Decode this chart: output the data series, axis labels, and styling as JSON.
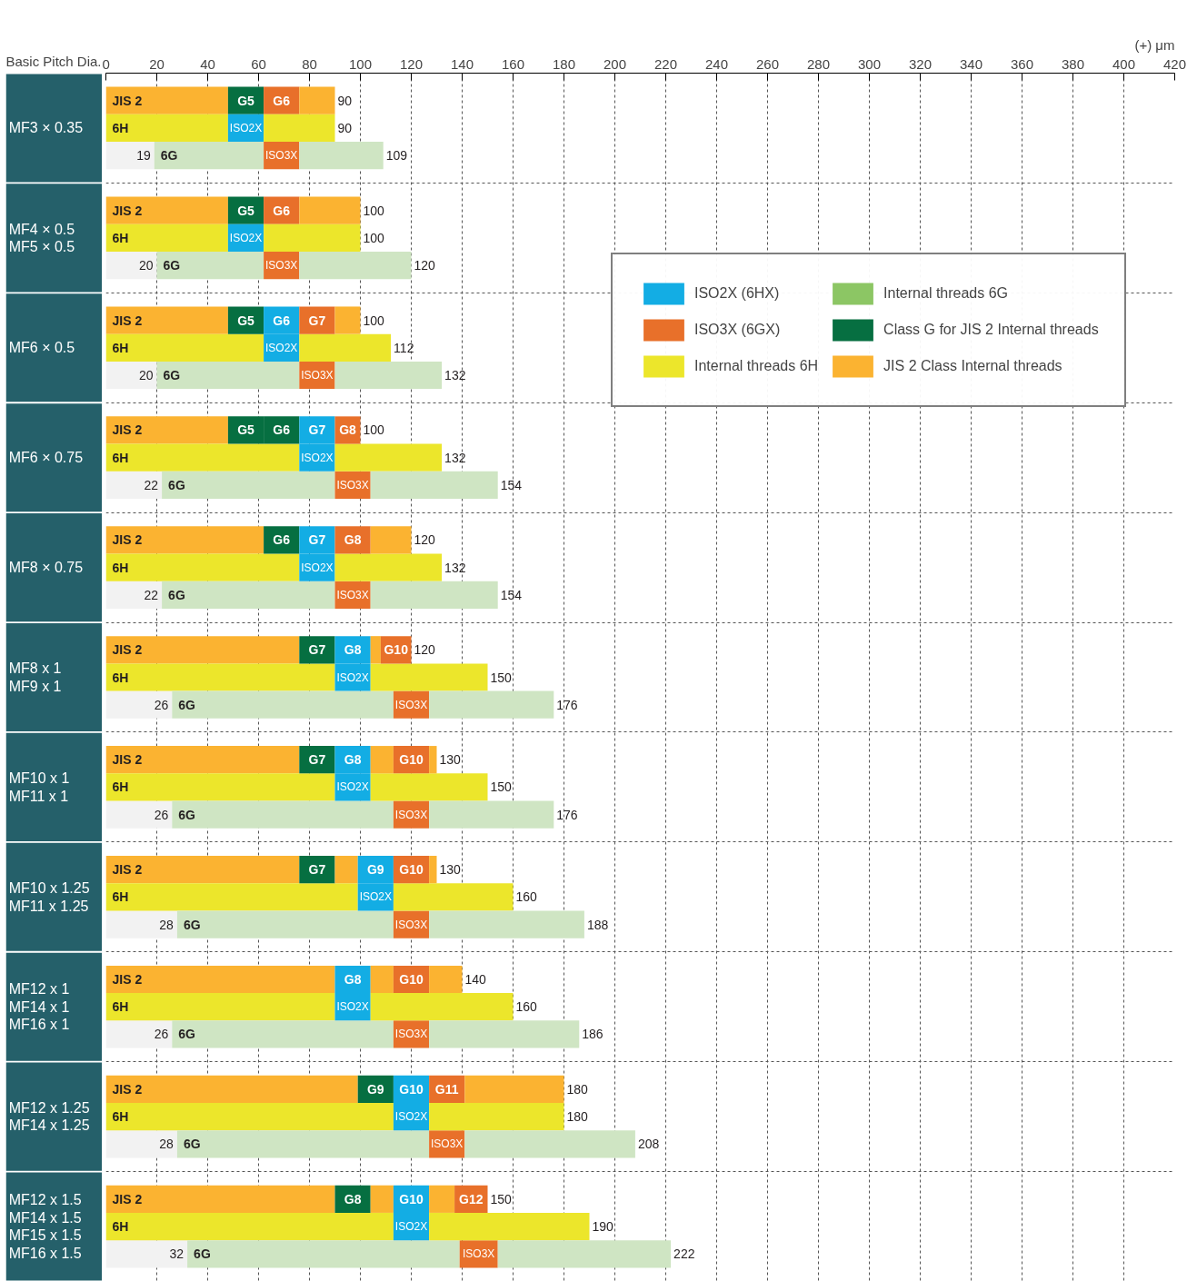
{
  "chart_data": {
    "type": "bar",
    "orientation": "horizontal",
    "stacked": true,
    "xlabel": "(+) μm",
    "ylabel": "Basic Pitch Dia.",
    "categories": [
      "JIS 2",
      "6H",
      "6G",
      "JIS 2",
      "6H",
      "6G",
      "JIS 2",
      "6H",
      "6G",
      "JIS 2",
      "6H",
      "6G",
      "JIS 2",
      "6H",
      "6G",
      "JIS 2",
      "6H",
      "6G",
      "JIS 2",
      "6H",
      "6G",
      "JIS 2",
      "6H",
      "6G",
      "JIS 2",
      "6H",
      "6G",
      "JIS 2",
      "6H",
      "6G",
      "JIS 2",
      "6H",
      "6G"
    ],
    "annotations": [
      "MF3 × 0.35",
      "MF4 × 0.5\nMF5 × 0.5",
      "MF6 × 0.5",
      "MF6 × 0.75",
      "MF8 × 0.75",
      "MF8 x 1\nMF9 x 1",
      "MF10 x 1\nMF11 x 1",
      "MF10 x 1.25\nMF11 x 1.25",
      "MF12 x 1\nMF14 x 1\nMF16 x 1",
      "MF12 x 1.25\nMF14 x 1.25",
      "MF12 x 1.5\nMF14 x 1.5\nMF15 x 1.5\nMF16 x 1.5"
    ],
    "totals": [
      "90",
      "90",
      "109",
      "100",
      "100",
      "120",
      "100",
      "112",
      "132",
      "100",
      "132",
      "154",
      "120",
      "132",
      "154",
      "120",
      "150",
      "176",
      "130",
      "150",
      "176",
      "130",
      "160",
      "188",
      "140",
      "160",
      "186",
      "180",
      "180",
      "208",
      "150",
      "190",
      "222"
    ],
    "xlim": [
      0,
      420
    ],
    "xticks": [
      0,
      20,
      40,
      60,
      80,
      100,
      120,
      140,
      160,
      180,
      200,
      220,
      240,
      260,
      280,
      300,
      320,
      340,
      360,
      380,
      400,
      420
    ],
    "grid": true,
    "legend": "top right",
    "series": [
      {
        "values": [
          null,
          null,
          19,
          null,
          null,
          20,
          null,
          null,
          20,
          null,
          null,
          22,
          null,
          null,
          22,
          null,
          null,
          26,
          null,
          null,
          26,
          null,
          null,
          28,
          null,
          null,
          26,
          null,
          null,
          28,
          null,
          null,
          32
        ],
        "colors": [
          null,
          null,
          "#f2f2f2",
          null,
          null,
          "#f2f2f2",
          null,
          null,
          "#f2f2f2",
          null,
          null,
          "#f2f2f2",
          null,
          null,
          "#f2f2f2",
          null,
          null,
          "#f2f2f2",
          null,
          null,
          "#f2f2f2",
          null,
          null,
          "#f2f2f2",
          null,
          null,
          "#f2f2f2",
          null,
          null,
          "#f2f2f2",
          null,
          null,
          "#f2f2f2"
        ],
        "value_labels": [
          null,
          null,
          "19",
          null,
          null,
          "20",
          null,
          null,
          "20",
          null,
          null,
          "22",
          null,
          null,
          "22",
          null,
          null,
          "26",
          null,
          null,
          "26",
          null,
          null,
          "28",
          null,
          null,
          "26",
          null,
          null,
          "28",
          null,
          null,
          "32"
        ]
      },
      {
        "values": [
          48,
          48,
          43,
          48,
          48,
          42,
          48,
          62,
          56,
          48,
          76,
          68,
          62,
          76,
          68,
          76,
          90,
          87,
          76,
          90,
          87,
          76,
          99,
          85,
          90,
          90,
          87,
          99,
          113,
          99,
          90,
          113,
          107
        ],
        "colors": [
          "#fbb331",
          "#ece62b",
          "#cfe5c3",
          "#fbb331",
          "#ece62b",
          "#cfe5c3",
          "#fbb331",
          "#ece62b",
          "#cfe5c3",
          "#fbb331",
          "#ece62b",
          "#cfe5c3",
          "#fbb331",
          "#ece62b",
          "#cfe5c3",
          "#fbb331",
          "#ece62b",
          "#cfe5c3",
          "#fbb331",
          "#ece62b",
          "#cfe5c3",
          "#fbb331",
          "#ece62b",
          "#cfe5c3",
          "#fbb331",
          "#ece62b",
          "#cfe5c3",
          "#fbb331",
          "#ece62b",
          "#cfe5c3",
          "#fbb331",
          "#ece62b",
          "#cfe5c3"
        ]
      },
      {
        "values": [
          14,
          14,
          14,
          14,
          14,
          14,
          14,
          14,
          14,
          14,
          14,
          14,
          14,
          14,
          14,
          14,
          14,
          14,
          14,
          14,
          14,
          14,
          14,
          14,
          14,
          14,
          14,
          14,
          14,
          14,
          14,
          14,
          15
        ],
        "colors": [
          "#066f41",
          "#13ade4",
          "#e8702a",
          "#066f41",
          "#13ade4",
          "#e8702a",
          "#066f41",
          "#13ade4",
          "#e8702a",
          "#066f41",
          "#13ade4",
          "#e8702a",
          "#066f41",
          "#13ade4",
          "#e8702a",
          "#066f41",
          "#13ade4",
          "#e8702a",
          "#066f41",
          "#13ade4",
          "#e8702a",
          "#066f41",
          "#13ade4",
          "#e8702a",
          "#13ade4",
          "#13ade4",
          "#e8702a",
          "#066f41",
          "#13ade4",
          "#e8702a",
          "#066f41",
          "#13ade4",
          "#e8702a"
        ],
        "value_labels": [
          "G5",
          "ISO2X",
          "ISO3X",
          "G5",
          "ISO2X",
          "ISO3X",
          "G5",
          "ISO2X",
          "ISO3X",
          "G5",
          "ISO2X",
          "ISO3X",
          "G6",
          "ISO2X",
          "ISO3X",
          "G7",
          "ISO2X",
          "ISO3X",
          "G7",
          "ISO2X",
          "ISO3X",
          "G7",
          "ISO2X",
          "ISO3X",
          "G8",
          "ISO2X",
          "ISO3X",
          "G9",
          "ISO2X",
          "ISO3X",
          "G8",
          "ISO2X",
          "ISO3X"
        ]
      },
      {
        "values": [
          14,
          28,
          33,
          14,
          38,
          44,
          14,
          36,
          42,
          14,
          42,
          50,
          14,
          42,
          50,
          14,
          46,
          49,
          14,
          46,
          49,
          9,
          47,
          61,
          9,
          56,
          59,
          14,
          53,
          67,
          9,
          63,
          68
        ],
        "colors": [
          "#e8702a",
          "#ece62b",
          "#cfe5c3",
          "#e8702a",
          "#ece62b",
          "#cfe5c3",
          "#13ade4",
          "#ece62b",
          "#cfe5c3",
          "#066f41",
          "#ece62b",
          "#cfe5c3",
          "#13ade4",
          "#ece62b",
          "#cfe5c3",
          "#13ade4",
          "#ece62b",
          "#cfe5c3",
          "#13ade4",
          "#ece62b",
          "#cfe5c3",
          "#fbb331",
          "#ece62b",
          "#cfe5c3",
          "#fbb331",
          "#ece62b",
          "#cfe5c3",
          "#13ade4",
          "#ece62b",
          "#cfe5c3",
          "#fbb331",
          "#ece62b",
          "#cfe5c3"
        ],
        "value_labels": [
          "G6",
          null,
          null,
          "G6",
          null,
          null,
          "G6",
          null,
          null,
          "G6",
          null,
          null,
          "G7",
          null,
          null,
          "G8",
          null,
          null,
          "G8",
          null,
          null,
          null,
          null,
          null,
          null,
          null,
          null,
          "G10",
          null,
          null,
          null,
          null,
          null
        ]
      },
      {
        "values": [
          14,
          null,
          null,
          24,
          null,
          null,
          14,
          null,
          null,
          14,
          null,
          null,
          14,
          null,
          null,
          4,
          null,
          null,
          9,
          null,
          null,
          14,
          null,
          null,
          14,
          null,
          null,
          14,
          null,
          null,
          14,
          null,
          null
        ],
        "colors": [
          "#fbb331",
          null,
          null,
          "#fbb331",
          null,
          null,
          "#e8702a",
          null,
          null,
          "#13ade4",
          null,
          null,
          "#e8702a",
          null,
          null,
          "#fbb331",
          null,
          null,
          "#fbb331",
          null,
          null,
          "#13ade4",
          null,
          null,
          "#e8702a",
          null,
          null,
          "#e8702a",
          null,
          null,
          "#13ade4",
          null,
          null
        ],
        "value_labels": [
          null,
          null,
          null,
          null,
          null,
          null,
          "G7",
          null,
          null,
          "G7",
          null,
          null,
          "G8",
          null,
          null,
          null,
          null,
          null,
          null,
          null,
          null,
          "G9",
          null,
          null,
          "G10",
          null,
          null,
          "G11",
          null,
          null,
          "G10",
          null,
          null
        ]
      },
      {
        "values": [
          null,
          null,
          null,
          null,
          null,
          null,
          10,
          null,
          null,
          10,
          null,
          null,
          16,
          null,
          null,
          12,
          null,
          null,
          14,
          null,
          null,
          14,
          null,
          null,
          13,
          null,
          null,
          39,
          null,
          null,
          10,
          null,
          null
        ],
        "colors": [
          null,
          null,
          null,
          null,
          null,
          null,
          "#fbb331",
          null,
          null,
          "#e8702a",
          null,
          null,
          "#fbb331",
          null,
          null,
          "#e8702a",
          null,
          null,
          "#e8702a",
          null,
          null,
          "#e8702a",
          null,
          null,
          "#fbb331",
          null,
          null,
          "#fbb331",
          null,
          null,
          "#fbb331",
          null,
          null
        ],
        "value_labels": [
          null,
          null,
          null,
          null,
          null,
          null,
          null,
          null,
          null,
          "G8",
          null,
          null,
          null,
          null,
          null,
          "G10",
          null,
          null,
          "G10",
          null,
          null,
          "G10",
          null,
          null,
          null,
          null,
          null,
          null,
          null,
          null,
          null,
          null,
          null
        ]
      },
      {
        "values": [
          null,
          null,
          null,
          null,
          null,
          null,
          null,
          null,
          null,
          null,
          null,
          null,
          null,
          null,
          null,
          null,
          null,
          null,
          3,
          null,
          null,
          3,
          null,
          null,
          null,
          null,
          null,
          null,
          null,
          null,
          13,
          null,
          null
        ],
        "colors": [
          null,
          null,
          null,
          null,
          null,
          null,
          null,
          null,
          null,
          null,
          null,
          null,
          null,
          null,
          null,
          null,
          null,
          null,
          "#fbb331",
          null,
          null,
          "#fbb331",
          null,
          null,
          null,
          null,
          null,
          null,
          null,
          null,
          "#e8702a",
          null,
          null
        ],
        "value_labels": [
          null,
          null,
          null,
          null,
          null,
          null,
          null,
          null,
          null,
          null,
          null,
          null,
          null,
          null,
          null,
          null,
          null,
          null,
          null,
          null,
          null,
          null,
          null,
          null,
          null,
          null,
          null,
          null,
          null,
          null,
          "G12",
          null,
          null
        ]
      },
      {
        "name": "ISO2X (6HX)",
        "color": "#13ade4",
        "values": [
          null,
          null,
          null,
          null,
          null,
          null,
          null,
          null,
          null,
          null,
          null,
          null,
          null,
          null,
          null,
          null,
          null,
          null,
          null,
          null,
          null,
          null,
          null,
          null,
          null,
          null,
          null,
          null,
          null,
          null,
          null,
          null,
          null
        ]
      },
      {
        "name": "ISO3X (6GX)",
        "color": "#e8702a",
        "values": [
          null,
          null,
          null,
          null,
          null,
          null,
          null,
          null,
          null,
          null,
          null,
          null,
          null,
          null,
          null,
          null,
          null,
          null,
          null,
          null,
          null,
          null,
          null,
          null,
          null,
          null,
          null,
          null,
          null,
          null,
          null,
          null,
          null
        ]
      },
      {
        "name": "Internal threads 6H",
        "color": "#ece62b",
        "values": [
          null,
          null,
          null,
          null,
          null,
          null,
          null,
          null,
          null,
          null,
          null,
          null,
          null,
          null,
          null,
          null,
          null,
          null,
          null,
          null,
          null,
          null,
          null,
          null,
          null,
          null,
          null,
          null,
          null,
          null,
          null,
          null,
          null
        ]
      },
      {
        "name": "Internal threads 6G",
        "color": "#8cc664",
        "values": [
          null,
          null,
          null,
          null,
          null,
          null,
          null,
          null,
          null,
          null,
          null,
          null,
          null,
          null,
          null,
          null,
          null,
          null,
          null,
          null,
          null,
          null,
          null,
          null,
          null,
          null,
          null,
          null,
          null,
          null,
          null,
          null,
          null
        ]
      },
      {
        "name": "Class G for JIS 2 Internal threads",
        "color": "#066f41",
        "values": [
          null,
          null,
          null,
          null,
          null,
          null,
          null,
          null,
          null,
          null,
          null,
          null,
          null,
          null,
          null,
          null,
          null,
          null,
          null,
          null,
          null,
          null,
          null,
          null,
          null,
          null,
          null,
          null,
          null,
          null,
          null,
          null,
          null
        ]
      },
      {
        "name": "JIS 2 Class Internal threads",
        "color": "#fbb331",
        "values": [
          null,
          null,
          null,
          null,
          null,
          null,
          null,
          null,
          null,
          null,
          null,
          null,
          null,
          null,
          null,
          null,
          null,
          null,
          null,
          null,
          null,
          null,
          null,
          null,
          null,
          null,
          null,
          null,
          null,
          null,
          null,
          null,
          null
        ]
      }
    ]
  }
}
